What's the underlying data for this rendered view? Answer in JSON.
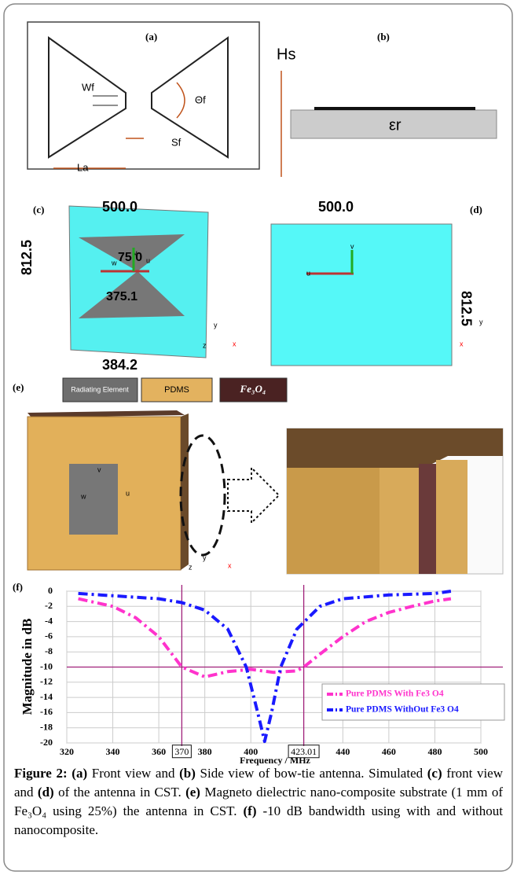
{
  "panel_a": {
    "label": "(a)",
    "wf": "Wf",
    "theta": "Θf",
    "sf": "Sf",
    "la": "La"
  },
  "panel_b": {
    "label": "(b)",
    "hs": "Hs",
    "er": "εr"
  },
  "panel_c": {
    "label": "(c)",
    "width": "500.0",
    "height": "812.5",
    "angle": "75.0",
    "diag": "375.1",
    "base": "384.2",
    "u": "u",
    "v": "v",
    "w": "w",
    "ax_y": "y",
    "ax_x": "x",
    "ax_z": "z"
  },
  "panel_d": {
    "label": "(d)",
    "width": "500.0",
    "height": "812.5",
    "u": "u",
    "v": "v",
    "ax_y": "y",
    "ax_x": "x"
  },
  "panel_e": {
    "label": "(e)",
    "legend": [
      "Radiating Element",
      "PDMS",
      "Fe₃O₄"
    ],
    "u": "u",
    "v": "v",
    "w": "w",
    "ax_y": "y",
    "ax_x": "x",
    "ax_z": "z"
  },
  "chart_data": {
    "type": "line",
    "panel_label": "(f)",
    "x_label": "Frequency / MHz",
    "y_label": "Magnitude in dB",
    "xlim": [
      320,
      500
    ],
    "ylim": [
      -20,
      0
    ],
    "xticks": [
      320,
      340,
      360,
      380,
      400,
      440,
      460,
      480,
      500
    ],
    "yticks": [
      0,
      -2,
      -4,
      -6,
      -8,
      -10,
      -12,
      -14,
      -16,
      -18,
      -20
    ],
    "x_markers": [
      370,
      423.01
    ],
    "hlines": [
      -10
    ],
    "grid": true,
    "legend": "lower right",
    "series": [
      {
        "name": "Pure PDMS With Fe3 O4",
        "color": "#ff33cc",
        "x": [
          325,
          340,
          350,
          360,
          370,
          380,
          390,
          400,
          410,
          420,
          423,
          430,
          440,
          450,
          460,
          470,
          480,
          487
        ],
        "values": [
          -1,
          -2,
          -3.5,
          -6,
          -10,
          -11.3,
          -10.6,
          -10.3,
          -10.7,
          -10.5,
          -10,
          -8.3,
          -6,
          -4,
          -2.8,
          -2,
          -1.3,
          -1
        ]
      },
      {
        "name": "Pure PDMS WithOut Fe3 O4",
        "color": "#1a1aff",
        "x": [
          325,
          340,
          360,
          370,
          380,
          390,
          398,
          403,
          406,
          409,
          413,
          420,
          430,
          440,
          460,
          480,
          487
        ],
        "values": [
          -0.3,
          -0.6,
          -1,
          -1.5,
          -2.5,
          -5,
          -10,
          -16,
          -19.8,
          -16,
          -10,
          -5,
          -2,
          -1,
          -0.5,
          -0.3,
          0
        ]
      }
    ]
  },
  "caption": [
    {
      "text": "Figure 2:",
      "bold": true
    },
    {
      "text": " (a)",
      "bold": true
    },
    {
      "text": " Front view and ",
      "bold": false
    },
    {
      "text": "(b)",
      "bold": true
    },
    {
      "text": " Side view of bow-tie antenna. Simulated ",
      "bold": false
    },
    {
      "text": "(c)",
      "bold": true
    },
    {
      "text": " front view and ",
      "bold": false
    },
    {
      "text": "(d)",
      "bold": true
    },
    {
      "text": " of the antenna in CST. ",
      "bold": false
    },
    {
      "text": "(e)",
      "bold": true
    },
    {
      "text": " Magneto dielectric nano-composite substrate (1 mm of Fe₃O₄ using 25%) the antenna in CST. ",
      "bold": false
    },
    {
      "text": "(f)",
      "bold": true
    },
    {
      "text": " -10 dB bandwidth using with and without nanocomposite.",
      "bold": false
    }
  ]
}
